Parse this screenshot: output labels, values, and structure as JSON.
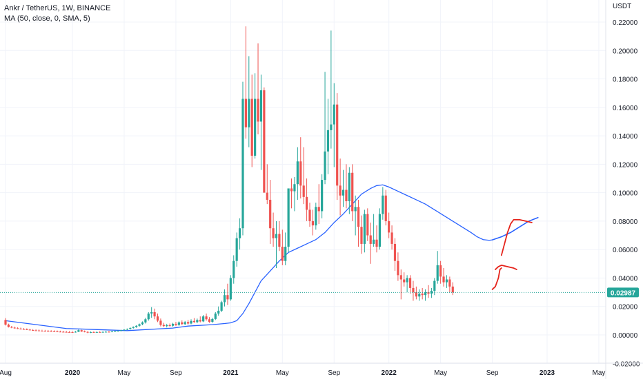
{
  "header": {
    "symbol_line": "Ankr / TetherUS, 1W, BINANCE",
    "indicator_line": "MA (50, close, 0, SMA, 5)",
    "unit": "USDT"
  },
  "colors": {
    "up": "#26a69a",
    "down": "#ef5350",
    "ma": "#2962ff",
    "price_tag": "#26a69a",
    "grid": "#f0f3fa",
    "drawing": "#e5231b"
  },
  "chart_data": {
    "type": "candlestick",
    "title": "Ankr / TetherUS, 1W, BINANCE",
    "ylabel": "USDT",
    "ylim": [
      -0.02,
      0.226
    ],
    "yticks": [
      -0.02,
      0.0,
      0.02,
      0.04,
      0.06,
      0.08,
      0.1,
      0.12,
      0.14,
      0.16,
      0.18,
      0.2,
      0.22
    ],
    "ytick_labels": [
      "-0.02000",
      "0.00000",
      "0.02000",
      "0.04000",
      "0.06000",
      "0.08000",
      "0.10000",
      "0.12000",
      "0.14000",
      "0.16000",
      "0.18000",
      "0.20000",
      "0.22000"
    ],
    "x_ticks": [
      {
        "label": "Aug",
        "week": 0
      },
      {
        "label": "2020",
        "week": 22
      },
      {
        "label": "May",
        "week": 39
      },
      {
        "label": "Sep",
        "week": 56
      },
      {
        "label": "2021",
        "week": 74
      },
      {
        "label": "May",
        "week": 91
      },
      {
        "label": "Sep",
        "week": 108
      },
      {
        "label": "2022",
        "week": 126
      },
      {
        "label": "May",
        "week": 143
      },
      {
        "label": "Sep",
        "week": 160
      },
      {
        "label": "2023",
        "week": 178
      },
      {
        "label": "May",
        "week": 195
      }
    ],
    "grid": true,
    "last_price": 0.02987,
    "last_price_label": "0.02987",
    "candles": [
      [
        0.0105,
        0.0118,
        0.0066,
        0.0072
      ],
      [
        0.0072,
        0.0079,
        0.0052,
        0.0056
      ],
      [
        0.0056,
        0.0063,
        0.0047,
        0.0051
      ],
      [
        0.0051,
        0.0058,
        0.0044,
        0.0047
      ],
      [
        0.0047,
        0.0054,
        0.0041,
        0.0044
      ],
      [
        0.0044,
        0.0051,
        0.0038,
        0.0041
      ],
      [
        0.0041,
        0.0048,
        0.0036,
        0.0039
      ],
      [
        0.0039,
        0.0046,
        0.0034,
        0.0037
      ],
      [
        0.0037,
        0.0043,
        0.0032,
        0.0034
      ],
      [
        0.0034,
        0.0041,
        0.003,
        0.0032
      ],
      [
        0.0032,
        0.0039,
        0.0028,
        0.0031
      ],
      [
        0.0031,
        0.0038,
        0.0027,
        0.0029
      ],
      [
        0.0029,
        0.0036,
        0.0025,
        0.0028
      ],
      [
        0.0028,
        0.0035,
        0.0024,
        0.0027
      ],
      [
        0.0027,
        0.0034,
        0.0023,
        0.0026
      ],
      [
        0.0026,
        0.0033,
        0.0022,
        0.0025
      ],
      [
        0.0025,
        0.0032,
        0.0021,
        0.0024
      ],
      [
        0.0024,
        0.0031,
        0.002,
        0.0023
      ],
      [
        0.0023,
        0.003,
        0.0019,
        0.0022
      ],
      [
        0.0022,
        0.0029,
        0.0018,
        0.0021
      ],
      [
        0.0021,
        0.0028,
        0.0017,
        0.002
      ],
      [
        0.002,
        0.0027,
        0.0016,
        0.0019
      ],
      [
        0.0019,
        0.0026,
        0.0015,
        0.0018
      ],
      [
        0.0018,
        0.0028,
        0.0016,
        0.0022
      ],
      [
        0.0022,
        0.0038,
        0.002,
        0.0033
      ],
      [
        0.0033,
        0.0036,
        0.0021,
        0.0024
      ],
      [
        0.0024,
        0.0031,
        0.0018,
        0.0021
      ],
      [
        0.0021,
        0.0026,
        0.0012,
        0.0016
      ],
      [
        0.0016,
        0.0024,
        0.0013,
        0.0019
      ],
      [
        0.0019,
        0.0025,
        0.0016,
        0.0018
      ],
      [
        0.0018,
        0.0024,
        0.0015,
        0.002
      ],
      [
        0.002,
        0.0026,
        0.0017,
        0.0019
      ],
      [
        0.0019,
        0.0025,
        0.0016,
        0.0021
      ],
      [
        0.0021,
        0.0027,
        0.0018,
        0.0022
      ],
      [
        0.0022,
        0.0028,
        0.0019,
        0.0021
      ],
      [
        0.0021,
        0.0028,
        0.0019,
        0.0024
      ],
      [
        0.0024,
        0.0031,
        0.0021,
        0.0026
      ],
      [
        0.0026,
        0.0033,
        0.0023,
        0.0029
      ],
      [
        0.0029,
        0.0036,
        0.0026,
        0.0032
      ],
      [
        0.0032,
        0.004,
        0.0029,
        0.0037
      ],
      [
        0.0037,
        0.0045,
        0.0033,
        0.0042
      ],
      [
        0.0042,
        0.0052,
        0.0038,
        0.0049
      ],
      [
        0.0049,
        0.006,
        0.0044,
        0.0056
      ],
      [
        0.0056,
        0.0068,
        0.005,
        0.0064
      ],
      [
        0.0064,
        0.008,
        0.0058,
        0.0075
      ],
      [
        0.0075,
        0.0095,
        0.0068,
        0.0088
      ],
      [
        0.0088,
        0.012,
        0.008,
        0.011
      ],
      [
        0.011,
        0.016,
        0.01,
        0.015
      ],
      [
        0.015,
        0.0195,
        0.012,
        0.016
      ],
      [
        0.016,
        0.0185,
        0.011,
        0.013
      ],
      [
        0.013,
        0.015,
        0.009,
        0.01
      ],
      [
        0.01,
        0.0115,
        0.006,
        0.007
      ],
      [
        0.007,
        0.0085,
        0.0055,
        0.0062
      ],
      [
        0.0062,
        0.0078,
        0.0052,
        0.0068
      ],
      [
        0.0068,
        0.008,
        0.0058,
        0.0064
      ],
      [
        0.0064,
        0.0085,
        0.0058,
        0.0078
      ],
      [
        0.0078,
        0.0092,
        0.0062,
        0.007
      ],
      [
        0.007,
        0.0095,
        0.0064,
        0.0088
      ],
      [
        0.0088,
        0.0102,
        0.007,
        0.0076
      ],
      [
        0.0076,
        0.0098,
        0.0068,
        0.009
      ],
      [
        0.009,
        0.0105,
        0.0072,
        0.008
      ],
      [
        0.008,
        0.011,
        0.0074,
        0.0098
      ],
      [
        0.0098,
        0.0118,
        0.0085,
        0.009
      ],
      [
        0.009,
        0.0115,
        0.0082,
        0.0105
      ],
      [
        0.0105,
        0.013,
        0.0088,
        0.0095
      ],
      [
        0.0095,
        0.014,
        0.009,
        0.013
      ],
      [
        0.013,
        0.015,
        0.01,
        0.011
      ],
      [
        0.011,
        0.0125,
        0.0085,
        0.0092
      ],
      [
        0.0092,
        0.012,
        0.0085,
        0.0112
      ],
      [
        0.0112,
        0.016,
        0.0105,
        0.015
      ],
      [
        0.015,
        0.02,
        0.0135,
        0.017
      ],
      [
        0.017,
        0.024,
        0.016,
        0.023
      ],
      [
        0.023,
        0.032,
        0.02,
        0.028
      ],
      [
        0.028,
        0.036,
        0.021,
        0.025
      ],
      [
        0.025,
        0.042,
        0.024,
        0.04
      ],
      [
        0.04,
        0.056,
        0.036,
        0.052
      ],
      [
        0.052,
        0.072,
        0.048,
        0.068
      ],
      [
        0.068,
        0.082,
        0.06,
        0.075
      ],
      [
        0.075,
        0.178,
        0.07,
        0.166
      ],
      [
        0.166,
        0.217,
        0.138,
        0.146
      ],
      [
        0.146,
        0.196,
        0.132,
        0.166
      ],
      [
        0.166,
        0.183,
        0.118,
        0.126
      ],
      [
        0.126,
        0.184,
        0.124,
        0.166
      ],
      [
        0.166,
        0.205,
        0.141,
        0.15
      ],
      [
        0.15,
        0.183,
        0.116,
        0.172
      ],
      [
        0.172,
        0.174,
        0.102,
        0.1
      ],
      [
        0.1,
        0.12,
        0.092,
        0.095
      ],
      [
        0.095,
        0.109,
        0.064,
        0.075
      ],
      [
        0.075,
        0.086,
        0.062,
        0.068
      ],
      [
        0.068,
        0.08,
        0.047,
        0.071
      ],
      [
        0.071,
        0.08,
        0.059,
        0.062
      ],
      [
        0.062,
        0.074,
        0.049,
        0.052
      ],
      [
        0.052,
        0.072,
        0.049,
        0.062
      ],
      [
        0.062,
        0.102,
        0.058,
        0.103
      ],
      [
        0.103,
        0.11,
        0.089,
        0.101
      ],
      [
        0.101,
        0.111,
        0.087,
        0.106
      ],
      [
        0.106,
        0.132,
        0.095,
        0.122
      ],
      [
        0.122,
        0.139,
        0.096,
        0.105
      ],
      [
        0.105,
        0.132,
        0.092,
        0.097
      ],
      [
        0.097,
        0.11,
        0.08,
        0.088
      ],
      [
        0.088,
        0.093,
        0.076,
        0.08
      ],
      [
        0.08,
        0.088,
        0.07,
        0.077
      ],
      [
        0.077,
        0.093,
        0.074,
        0.09
      ],
      [
        0.09,
        0.106,
        0.078,
        0.087
      ],
      [
        0.087,
        0.113,
        0.082,
        0.109
      ],
      [
        0.109,
        0.185,
        0.106,
        0.129
      ],
      [
        0.129,
        0.166,
        0.113,
        0.144
      ],
      [
        0.144,
        0.214,
        0.131,
        0.148
      ],
      [
        0.148,
        0.177,
        0.118,
        0.162
      ],
      [
        0.162,
        0.17,
        0.095,
        0.105
      ],
      [
        0.105,
        0.124,
        0.084,
        0.098
      ],
      [
        0.098,
        0.116,
        0.09,
        0.102
      ],
      [
        0.102,
        0.12,
        0.089,
        0.094
      ],
      [
        0.094,
        0.118,
        0.085,
        0.114
      ],
      [
        0.114,
        0.12,
        0.08,
        0.087
      ],
      [
        0.087,
        0.098,
        0.07,
        0.09
      ],
      [
        0.09,
        0.095,
        0.062,
        0.076
      ],
      [
        0.076,
        0.084,
        0.057,
        0.064
      ],
      [
        0.064,
        0.088,
        0.058,
        0.085
      ],
      [
        0.085,
        0.089,
        0.066,
        0.07
      ],
      [
        0.07,
        0.079,
        0.05,
        0.064
      ],
      [
        0.064,
        0.085,
        0.062,
        0.067
      ],
      [
        0.067,
        0.077,
        0.058,
        0.062
      ],
      [
        0.062,
        0.089,
        0.06,
        0.085
      ],
      [
        0.085,
        0.104,
        0.081,
        0.098
      ],
      [
        0.098,
        0.102,
        0.077,
        0.08
      ],
      [
        0.08,
        0.086,
        0.068,
        0.072
      ],
      [
        0.072,
        0.077,
        0.06,
        0.064
      ],
      [
        0.064,
        0.068,
        0.045,
        0.052
      ],
      [
        0.052,
        0.058,
        0.038,
        0.042
      ],
      [
        0.042,
        0.046,
        0.025,
        0.039
      ],
      [
        0.039,
        0.044,
        0.034,
        0.037
      ],
      [
        0.037,
        0.042,
        0.03,
        0.04
      ],
      [
        0.04,
        0.042,
        0.029,
        0.033
      ],
      [
        0.033,
        0.038,
        0.024,
        0.03
      ],
      [
        0.03,
        0.034,
        0.025,
        0.027
      ],
      [
        0.027,
        0.032,
        0.024,
        0.029
      ],
      [
        0.029,
        0.033,
        0.025,
        0.028
      ],
      [
        0.028,
        0.032,
        0.024,
        0.03
      ],
      [
        0.03,
        0.035,
        0.026,
        0.029
      ],
      [
        0.029,
        0.033,
        0.026,
        0.031
      ],
      [
        0.031,
        0.04,
        0.028,
        0.038
      ],
      [
        0.038,
        0.059,
        0.036,
        0.049
      ],
      [
        0.049,
        0.052,
        0.036,
        0.041
      ],
      [
        0.041,
        0.047,
        0.034,
        0.037
      ],
      [
        0.037,
        0.042,
        0.033,
        0.039
      ],
      [
        0.039,
        0.041,
        0.03,
        0.034
      ],
      [
        0.034,
        0.037,
        0.028,
        0.0299
      ]
    ],
    "ma_line": [
      [
        0,
        0.01
      ],
      [
        20,
        0.0045
      ],
      [
        40,
        0.003
      ],
      [
        55,
        0.0048
      ],
      [
        60,
        0.0062
      ],
      [
        68,
        0.0072
      ],
      [
        72,
        0.008
      ],
      [
        74,
        0.0085
      ],
      [
        76,
        0.01
      ],
      [
        78,
        0.015
      ],
      [
        80,
        0.022
      ],
      [
        82,
        0.03
      ],
      [
        84,
        0.038
      ],
      [
        87,
        0.045
      ],
      [
        90,
        0.052
      ],
      [
        93,
        0.058
      ],
      [
        96,
        0.061
      ],
      [
        99,
        0.064
      ],
      [
        102,
        0.067
      ],
      [
        105,
        0.072
      ],
      [
        108,
        0.079
      ],
      [
        111,
        0.085
      ],
      [
        114,
        0.092
      ],
      [
        117,
        0.099
      ],
      [
        120,
        0.103
      ],
      [
        122,
        0.105
      ],
      [
        124,
        0.1055
      ],
      [
        126,
        0.104
      ],
      [
        129,
        0.101
      ],
      [
        132,
        0.098
      ],
      [
        135,
        0.095
      ],
      [
        138,
        0.092
      ],
      [
        141,
        0.088
      ],
      [
        144,
        0.084
      ],
      [
        147,
        0.08
      ],
      [
        150,
        0.076
      ],
      [
        153,
        0.072
      ],
      [
        155,
        0.069
      ],
      [
        157,
        0.067
      ],
      [
        159,
        0.0665
      ],
      [
        160,
        0.0668
      ]
    ]
  },
  "drawing": {
    "ma_projection": [
      [
        160,
        0.0668
      ],
      [
        163,
        0.069
      ],
      [
        166,
        0.072
      ],
      [
        169,
        0.076
      ],
      [
        172,
        0.08
      ],
      [
        175,
        0.0825
      ]
    ],
    "red_paths": [
      [
        [
          160,
          0.032
        ],
        [
          161,
          0.034
        ],
        [
          162,
          0.04
        ],
        [
          162.5,
          0.046
        ],
        [
          163,
          0.047
        ]
      ],
      [
        [
          161,
          0.046
        ],
        [
          162,
          0.048
        ],
        [
          163,
          0.049
        ],
        [
          165,
          0.048
        ],
        [
          167,
          0.047
        ],
        [
          168,
          0.046
        ]
      ],
      [
        [
          163,
          0.056
        ],
        [
          164,
          0.064
        ],
        [
          165,
          0.072
        ],
        [
          166,
          0.078
        ],
        [
          167,
          0.081
        ],
        [
          169,
          0.081
        ],
        [
          171,
          0.08
        ],
        [
          173,
          0.079
        ]
      ]
    ]
  }
}
